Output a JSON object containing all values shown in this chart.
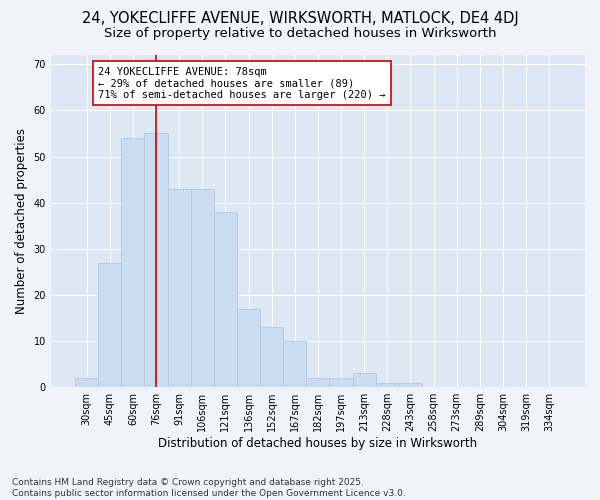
{
  "title_line1": "24, YOKECLIFFE AVENUE, WIRKSWORTH, MATLOCK, DE4 4DJ",
  "title_line2": "Size of property relative to detached houses in Wirksworth",
  "xlabel": "Distribution of detached houses by size in Wirksworth",
  "ylabel": "Number of detached properties",
  "categories": [
    "30sqm",
    "45sqm",
    "60sqm",
    "76sqm",
    "91sqm",
    "106sqm",
    "121sqm",
    "136sqm",
    "152sqm",
    "167sqm",
    "182sqm",
    "197sqm",
    "213sqm",
    "228sqm",
    "243sqm",
    "258sqm",
    "273sqm",
    "289sqm",
    "304sqm",
    "319sqm",
    "334sqm"
  ],
  "values": [
    2,
    27,
    54,
    55,
    43,
    43,
    38,
    17,
    13,
    10,
    2,
    2,
    3,
    1,
    1,
    0,
    0,
    0,
    0,
    0,
    0
  ],
  "bar_color": "#c9dcf0",
  "bar_edge_color": "#aac4e0",
  "vline_index": 3,
  "vline_color": "#cc0000",
  "annotation_text": "24 YOKECLIFFE AVENUE: 78sqm\n← 29% of detached houses are smaller (89)\n71% of semi-detached houses are larger (220) →",
  "annotation_box_facecolor": "#ffffff",
  "annotation_box_edgecolor": "#cc0000",
  "ylim_max": 72,
  "yticks": [
    0,
    10,
    20,
    30,
    40,
    50,
    60,
    70
  ],
  "fig_bg_color": "#f0f4fa",
  "plot_bg_color": "#dde8f4",
  "grid_color": "#ffffff",
  "title_fontsize": 10.5,
  "subtitle_fontsize": 9.5,
  "axis_label_fontsize": 8.5,
  "tick_fontsize": 7,
  "annotation_fontsize": 7.5,
  "footer_fontsize": 6.5,
  "footer_line1": "Contains HM Land Registry data © Crown copyright and database right 2025.",
  "footer_line2": "Contains public sector information licensed under the Open Government Licence v3.0."
}
